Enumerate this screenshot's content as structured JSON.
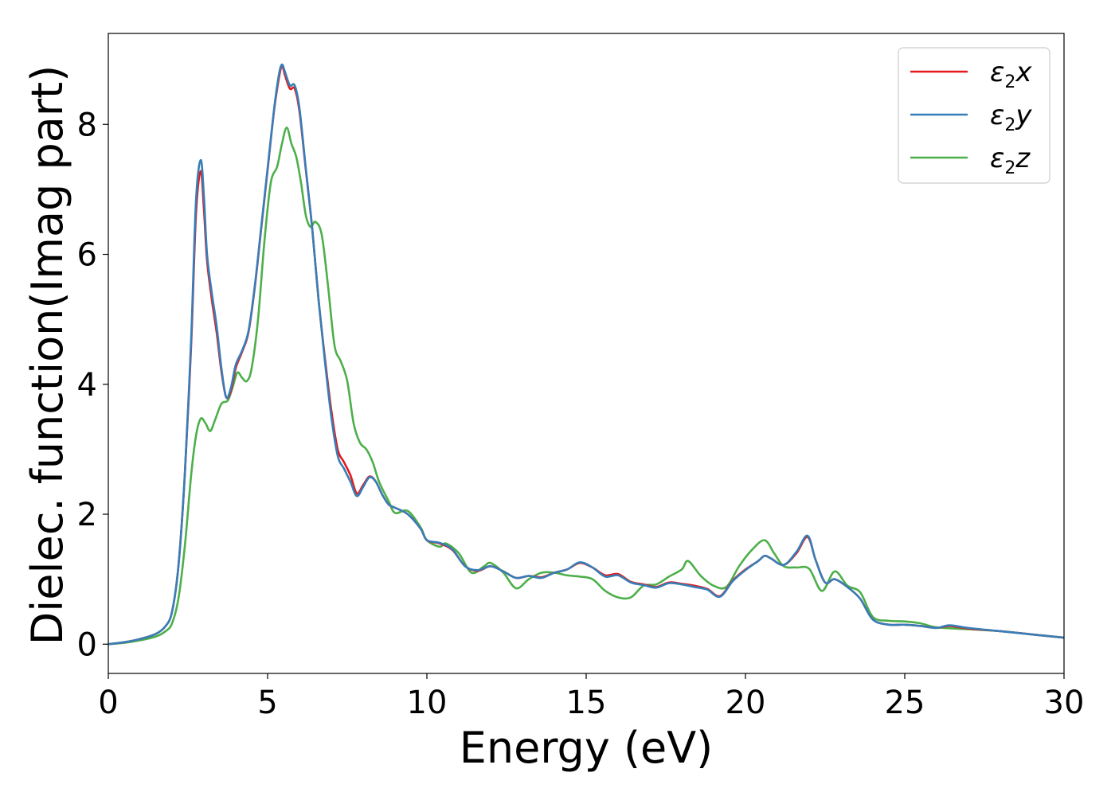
{
  "chart_data": {
    "type": "line",
    "title": "",
    "xlabel": "Energy (eV)",
    "ylabel": "Dielec. function(Imag part)",
    "xlim": [
      0,
      30
    ],
    "ylim": [
      -0.45,
      9.4
    ],
    "xticks": [
      0,
      5,
      10,
      15,
      20,
      25,
      30
    ],
    "yticks": [
      0,
      2,
      4,
      6,
      8
    ],
    "grid": false,
    "legend_position": "top-right",
    "series": [
      {
        "name_main": "ε",
        "name_sub": "2",
        "name_suffix": "x",
        "color": "#e41a1c",
        "points": [
          [
            0,
            0
          ],
          [
            0.5,
            0.03
          ],
          [
            1,
            0.08
          ],
          [
            1.5,
            0.16
          ],
          [
            1.8,
            0.28
          ],
          [
            2.0,
            0.5
          ],
          [
            2.2,
            1.2
          ],
          [
            2.4,
            2.6
          ],
          [
            2.6,
            4.6
          ],
          [
            2.75,
            6.6
          ],
          [
            2.9,
            7.28
          ],
          [
            3.0,
            6.7
          ],
          [
            3.1,
            5.9
          ],
          [
            3.25,
            5.3
          ],
          [
            3.4,
            4.8
          ],
          [
            3.55,
            4.2
          ],
          [
            3.7,
            3.8
          ],
          [
            3.85,
            3.9
          ],
          [
            4.0,
            4.25
          ],
          [
            4.2,
            4.5
          ],
          [
            4.4,
            4.8
          ],
          [
            4.6,
            5.5
          ],
          [
            4.8,
            6.4
          ],
          [
            5.0,
            7.3
          ],
          [
            5.2,
            8.2
          ],
          [
            5.35,
            8.7
          ],
          [
            5.45,
            8.9
          ],
          [
            5.55,
            8.75
          ],
          [
            5.7,
            8.55
          ],
          [
            5.85,
            8.55
          ],
          [
            6.0,
            8.2
          ],
          [
            6.2,
            7.3
          ],
          [
            6.4,
            6.4
          ],
          [
            6.6,
            5.3
          ],
          [
            6.8,
            4.4
          ],
          [
            7.0,
            3.6
          ],
          [
            7.2,
            3.0
          ],
          [
            7.4,
            2.8
          ],
          [
            7.6,
            2.6
          ],
          [
            7.8,
            2.32
          ],
          [
            8.0,
            2.45
          ],
          [
            8.2,
            2.58
          ],
          [
            8.4,
            2.5
          ],
          [
            8.6,
            2.3
          ],
          [
            8.8,
            2.15
          ],
          [
            9.0,
            2.1
          ],
          [
            9.4,
            2.0
          ],
          [
            9.8,
            1.78
          ],
          [
            10.0,
            1.6
          ],
          [
            10.4,
            1.55
          ],
          [
            10.8,
            1.45
          ],
          [
            11.2,
            1.2
          ],
          [
            11.6,
            1.13
          ],
          [
            12.0,
            1.2
          ],
          [
            12.4,
            1.12
          ],
          [
            12.8,
            1.02
          ],
          [
            13.2,
            1.05
          ],
          [
            13.6,
            1.03
          ],
          [
            14.0,
            1.1
          ],
          [
            14.4,
            1.15
          ],
          [
            14.8,
            1.25
          ],
          [
            15.2,
            1.18
          ],
          [
            15.6,
            1.06
          ],
          [
            16.0,
            1.08
          ],
          [
            16.4,
            0.96
          ],
          [
            16.8,
            0.92
          ],
          [
            17.2,
            0.88
          ],
          [
            17.6,
            0.95
          ],
          [
            18.0,
            0.93
          ],
          [
            18.4,
            0.9
          ],
          [
            18.8,
            0.85
          ],
          [
            19.2,
            0.74
          ],
          [
            19.6,
            0.98
          ],
          [
            20.0,
            1.15
          ],
          [
            20.4,
            1.28
          ],
          [
            20.6,
            1.36
          ],
          [
            20.8,
            1.32
          ],
          [
            21.2,
            1.22
          ],
          [
            21.6,
            1.4
          ],
          [
            21.95,
            1.65
          ],
          [
            22.2,
            1.3
          ],
          [
            22.5,
            0.95
          ],
          [
            22.8,
            1.0
          ],
          [
            23.2,
            0.88
          ],
          [
            23.6,
            0.7
          ],
          [
            24.0,
            0.38
          ],
          [
            24.5,
            0.3
          ],
          [
            25.0,
            0.3
          ],
          [
            25.5,
            0.28
          ],
          [
            26.0,
            0.25
          ],
          [
            26.4,
            0.28
          ],
          [
            27.0,
            0.24
          ],
          [
            28.0,
            0.2
          ],
          [
            29.0,
            0.15
          ],
          [
            30.0,
            0.1
          ]
        ]
      },
      {
        "name_main": "ε",
        "name_sub": "2",
        "name_suffix": "y",
        "color": "#377eb8",
        "points": [
          [
            0,
            0
          ],
          [
            0.5,
            0.03
          ],
          [
            1,
            0.08
          ],
          [
            1.5,
            0.16
          ],
          [
            1.8,
            0.28
          ],
          [
            2.0,
            0.5
          ],
          [
            2.2,
            1.2
          ],
          [
            2.4,
            2.6
          ],
          [
            2.6,
            4.7
          ],
          [
            2.75,
            6.8
          ],
          [
            2.9,
            7.45
          ],
          [
            3.0,
            6.9
          ],
          [
            3.1,
            6.0
          ],
          [
            3.25,
            5.4
          ],
          [
            3.4,
            4.9
          ],
          [
            3.55,
            4.25
          ],
          [
            3.7,
            3.8
          ],
          [
            3.85,
            3.95
          ],
          [
            4.0,
            4.3
          ],
          [
            4.2,
            4.52
          ],
          [
            4.4,
            4.82
          ],
          [
            4.6,
            5.52
          ],
          [
            4.8,
            6.42
          ],
          [
            5.0,
            7.32
          ],
          [
            5.2,
            8.22
          ],
          [
            5.35,
            8.75
          ],
          [
            5.45,
            8.92
          ],
          [
            5.55,
            8.8
          ],
          [
            5.7,
            8.6
          ],
          [
            5.85,
            8.6
          ],
          [
            6.0,
            8.25
          ],
          [
            6.2,
            7.32
          ],
          [
            6.4,
            6.4
          ],
          [
            6.6,
            5.3
          ],
          [
            6.8,
            4.35
          ],
          [
            7.0,
            3.5
          ],
          [
            7.2,
            2.9
          ],
          [
            7.4,
            2.7
          ],
          [
            7.6,
            2.5
          ],
          [
            7.8,
            2.28
          ],
          [
            8.0,
            2.42
          ],
          [
            8.2,
            2.57
          ],
          [
            8.4,
            2.5
          ],
          [
            8.6,
            2.3
          ],
          [
            8.8,
            2.15
          ],
          [
            9.0,
            2.1
          ],
          [
            9.4,
            2.0
          ],
          [
            9.8,
            1.78
          ],
          [
            10.0,
            1.6
          ],
          [
            10.4,
            1.56
          ],
          [
            10.8,
            1.46
          ],
          [
            11.2,
            1.2
          ],
          [
            11.6,
            1.14
          ],
          [
            12.0,
            1.2
          ],
          [
            12.4,
            1.12
          ],
          [
            12.8,
            1.02
          ],
          [
            13.2,
            1.05
          ],
          [
            13.6,
            1.02
          ],
          [
            14.0,
            1.1
          ],
          [
            14.4,
            1.15
          ],
          [
            14.8,
            1.26
          ],
          [
            15.2,
            1.18
          ],
          [
            15.6,
            1.04
          ],
          [
            16.0,
            1.06
          ],
          [
            16.4,
            0.95
          ],
          [
            16.8,
            0.91
          ],
          [
            17.2,
            0.87
          ],
          [
            17.6,
            0.94
          ],
          [
            18.0,
            0.92
          ],
          [
            18.4,
            0.88
          ],
          [
            18.8,
            0.84
          ],
          [
            19.2,
            0.73
          ],
          [
            19.6,
            0.97
          ],
          [
            20.0,
            1.14
          ],
          [
            20.4,
            1.28
          ],
          [
            20.6,
            1.36
          ],
          [
            20.8,
            1.32
          ],
          [
            21.2,
            1.22
          ],
          [
            21.6,
            1.42
          ],
          [
            21.95,
            1.67
          ],
          [
            22.2,
            1.3
          ],
          [
            22.5,
            0.95
          ],
          [
            22.8,
            1.0
          ],
          [
            23.2,
            0.88
          ],
          [
            23.6,
            0.7
          ],
          [
            24.0,
            0.38
          ],
          [
            24.5,
            0.3
          ],
          [
            25.0,
            0.3
          ],
          [
            25.5,
            0.28
          ],
          [
            26.0,
            0.25
          ],
          [
            26.4,
            0.29
          ],
          [
            27.0,
            0.25
          ],
          [
            28.0,
            0.2
          ],
          [
            29.0,
            0.15
          ],
          [
            30.0,
            0.1
          ]
        ]
      },
      {
        "name_main": "ε",
        "name_sub": "2",
        "name_suffix": "z",
        "color": "#4daf4a",
        "points": [
          [
            0,
            0
          ],
          [
            0.5,
            0.02
          ],
          [
            1,
            0.06
          ],
          [
            1.5,
            0.12
          ],
          [
            1.8,
            0.2
          ],
          [
            2.0,
            0.32
          ],
          [
            2.2,
            0.7
          ],
          [
            2.4,
            1.5
          ],
          [
            2.6,
            2.6
          ],
          [
            2.75,
            3.2
          ],
          [
            2.9,
            3.47
          ],
          [
            3.05,
            3.4
          ],
          [
            3.2,
            3.28
          ],
          [
            3.35,
            3.45
          ],
          [
            3.55,
            3.7
          ],
          [
            3.75,
            3.75
          ],
          [
            3.9,
            3.95
          ],
          [
            4.05,
            4.18
          ],
          [
            4.2,
            4.1
          ],
          [
            4.35,
            4.05
          ],
          [
            4.5,
            4.25
          ],
          [
            4.7,
            5.0
          ],
          [
            4.9,
            6.2
          ],
          [
            5.1,
            7.1
          ],
          [
            5.3,
            7.35
          ],
          [
            5.45,
            7.7
          ],
          [
            5.6,
            7.95
          ],
          [
            5.75,
            7.7
          ],
          [
            5.9,
            7.5
          ],
          [
            6.05,
            7.1
          ],
          [
            6.2,
            6.6
          ],
          [
            6.35,
            6.42
          ],
          [
            6.5,
            6.5
          ],
          [
            6.7,
            6.3
          ],
          [
            6.9,
            5.5
          ],
          [
            7.1,
            4.6
          ],
          [
            7.3,
            4.35
          ],
          [
            7.5,
            4.05
          ],
          [
            7.7,
            3.4
          ],
          [
            7.9,
            3.1
          ],
          [
            8.1,
            3.0
          ],
          [
            8.3,
            2.8
          ],
          [
            8.5,
            2.5
          ],
          [
            8.8,
            2.2
          ],
          [
            9.0,
            2.02
          ],
          [
            9.4,
            2.05
          ],
          [
            9.8,
            1.8
          ],
          [
            10.0,
            1.6
          ],
          [
            10.4,
            1.5
          ],
          [
            10.6,
            1.55
          ],
          [
            11.0,
            1.4
          ],
          [
            11.4,
            1.1
          ],
          [
            11.8,
            1.2
          ],
          [
            12.0,
            1.25
          ],
          [
            12.4,
            1.1
          ],
          [
            12.8,
            0.86
          ],
          [
            13.2,
            1.0
          ],
          [
            13.6,
            1.1
          ],
          [
            14.0,
            1.1
          ],
          [
            14.4,
            1.06
          ],
          [
            14.8,
            1.04
          ],
          [
            15.2,
            1.0
          ],
          [
            15.6,
            0.82
          ],
          [
            16.0,
            0.72
          ],
          [
            16.4,
            0.72
          ],
          [
            16.8,
            0.9
          ],
          [
            17.2,
            0.92
          ],
          [
            17.6,
            1.04
          ],
          [
            18.0,
            1.15
          ],
          [
            18.2,
            1.28
          ],
          [
            18.6,
            1.05
          ],
          [
            19.0,
            0.9
          ],
          [
            19.4,
            0.88
          ],
          [
            19.8,
            1.2
          ],
          [
            20.2,
            1.45
          ],
          [
            20.6,
            1.6
          ],
          [
            20.9,
            1.4
          ],
          [
            21.2,
            1.2
          ],
          [
            21.6,
            1.18
          ],
          [
            22.0,
            1.16
          ],
          [
            22.4,
            0.82
          ],
          [
            22.8,
            1.12
          ],
          [
            23.2,
            0.9
          ],
          [
            23.6,
            0.8
          ],
          [
            24.0,
            0.42
          ],
          [
            24.5,
            0.36
          ],
          [
            25.0,
            0.35
          ],
          [
            25.5,
            0.32
          ],
          [
            26.0,
            0.26
          ],
          [
            27.0,
            0.23
          ],
          [
            28.0,
            0.2
          ],
          [
            29.0,
            0.15
          ],
          [
            30.0,
            0.1
          ]
        ]
      }
    ]
  }
}
